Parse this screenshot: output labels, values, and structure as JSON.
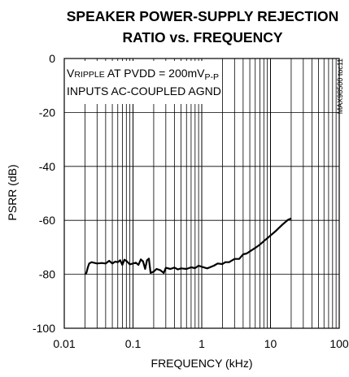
{
  "chart_data": {
    "type": "line",
    "title_line1": "SPEAKER POWER-SUPPLY REJECTION",
    "title_line2": "RATIO vs. FREQUENCY",
    "xlabel": "FREQUENCY (kHz)",
    "ylabel": "PSRR (dB)",
    "xscale": "log",
    "xlim": [
      0.01,
      100
    ],
    "ylim": [
      -100,
      0
    ],
    "xticks": [
      "0.01",
      "0.1",
      "1",
      "10",
      "100"
    ],
    "yticks": [
      "0",
      "-20",
      "-40",
      "-60",
      "-80",
      "-100"
    ],
    "grid": true,
    "annotation_line1_pre": "V",
    "annotation_line1_sub": "RIPPLE",
    "annotation_line1_mid": " AT PVDD = 200mV",
    "annotation_line1_sub2": "P-P",
    "annotation_line2": "INPUTS AC-COUPLED AGND",
    "side_label": "MAX98500 toc11",
    "series": [
      {
        "x": [
          0.02,
          0.021,
          0.022,
          0.023,
          0.025,
          0.03,
          0.035,
          0.04,
          0.045,
          0.05,
          0.055,
          0.06,
          0.065,
          0.07,
          0.075,
          0.08,
          0.09,
          0.1,
          0.11,
          0.12,
          0.13,
          0.14,
          0.15,
          0.16,
          0.17,
          0.18,
          0.2,
          0.22,
          0.25,
          0.28,
          0.3,
          0.35,
          0.4,
          0.45,
          0.5,
          0.6,
          0.7,
          0.8,
          0.9,
          1,
          1.2,
          1.5,
          1.7,
          2,
          2.2,
          2.5,
          3,
          3.5,
          4,
          4.5,
          5,
          6,
          7,
          8,
          10,
          12,
          15,
          18,
          20
        ],
        "y": [
          -80,
          -79.5,
          -77.5,
          -76,
          -75.5,
          -76,
          -75.8,
          -76,
          -75,
          -76,
          -75.3,
          -75.5,
          -74.8,
          -76.5,
          -74.6,
          -75,
          -76.3,
          -76,
          -75.7,
          -76.5,
          -74.5,
          -75.2,
          -78,
          -74.8,
          -74.2,
          -79.5,
          -79,
          -78,
          -78.5,
          -79.5,
          -77.6,
          -78,
          -77.5,
          -78.2,
          -77.8,
          -78,
          -77.4,
          -77.7,
          -76.8,
          -77.2,
          -77.8,
          -76.8,
          -76,
          -76.2,
          -75.5,
          -75.5,
          -74.3,
          -74.3,
          -72.6,
          -72.3,
          -71.5,
          -70.2,
          -69,
          -67.7,
          -65.6,
          -63.9,
          -61.5,
          -59.8,
          -59.3
        ]
      }
    ]
  }
}
